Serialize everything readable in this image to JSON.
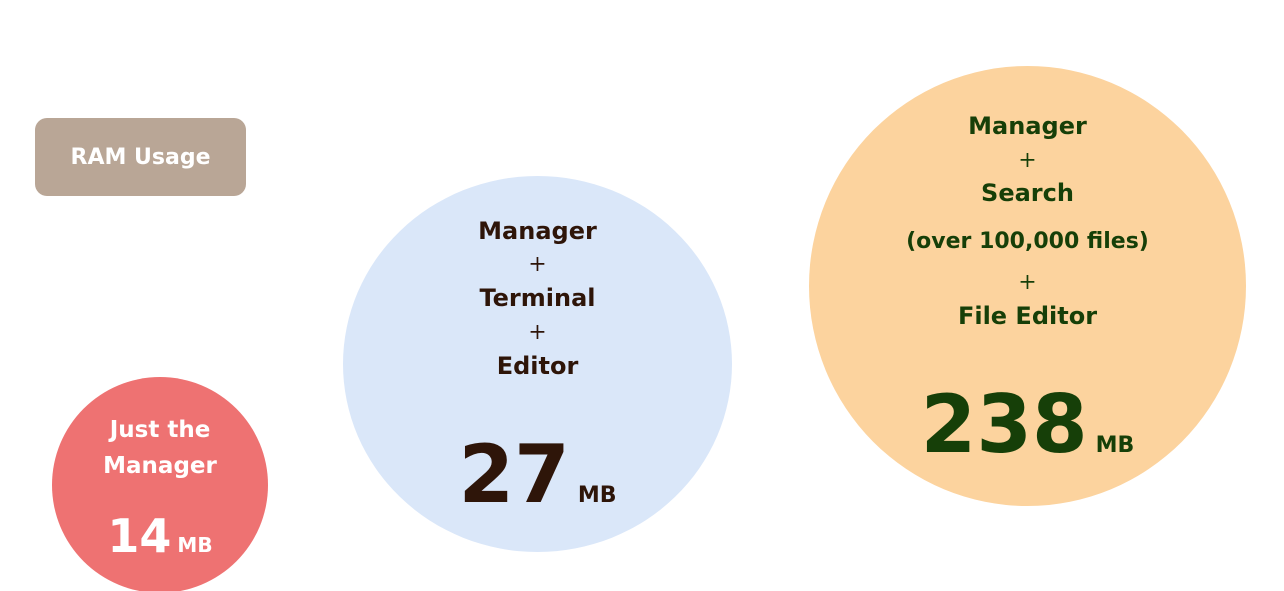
{
  "badge": {
    "label": "RAM Usage",
    "color": "#b9a696"
  },
  "bubbles": [
    {
      "lines": [
        "Just the",
        "Manager"
      ],
      "value": "14",
      "unit": "MB",
      "fill": "#ee7272",
      "text_color": "#ffffff"
    },
    {
      "lines": [
        "Manager",
        "+",
        "Terminal",
        "+",
        "Editor"
      ],
      "value": "27",
      "unit": "MB",
      "fill": "#dae7f9",
      "text_color": "#2e1509"
    },
    {
      "lines": [
        "Manager",
        "+",
        "Search",
        "(over 100,000 files)",
        "+",
        "File Editor"
      ],
      "value": "238",
      "unit": "MB",
      "fill": "#fcd39e",
      "text_color": "#163f08"
    }
  ]
}
